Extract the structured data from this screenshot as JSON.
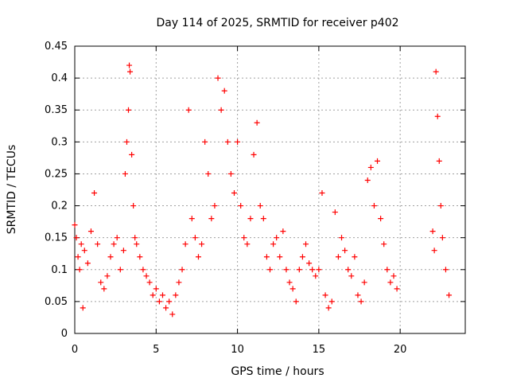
{
  "chart_data": {
    "type": "scatter",
    "title": "Day 114 of 2025, SRMTID for receiver p402",
    "xlabel": "GPS time / hours",
    "ylabel": "SRMTID / TECUs",
    "xlim": [
      0,
      24
    ],
    "ylim": [
      0,
      0.45
    ],
    "xticks": [
      0,
      5,
      10,
      15,
      20
    ],
    "yticks": [
      0,
      0.05,
      0.1,
      0.15,
      0.2,
      0.25,
      0.3,
      0.35,
      0.4,
      0.45
    ],
    "xtick_labels": [
      "0",
      "5",
      "10",
      "15",
      "20"
    ],
    "ytick_labels": [
      "0",
      "0.05",
      "0.1",
      "0.15",
      "0.2",
      "0.25",
      "0.3",
      "0.35",
      "0.4",
      "0.45"
    ],
    "grid": true,
    "marker": "+",
    "color": "#ff0000",
    "series": [
      {
        "name": "SRMTID",
        "x": [
          0.0,
          0.1,
          0.2,
          0.3,
          0.4,
          0.5,
          0.6,
          0.8,
          1.0,
          1.2,
          1.4,
          1.6,
          1.8,
          2.0,
          2.2,
          2.4,
          2.6,
          2.8,
          3.0,
          3.1,
          3.2,
          3.3,
          3.35,
          3.4,
          3.5,
          3.6,
          3.7,
          3.8,
          4.0,
          4.2,
          4.4,
          4.6,
          4.8,
          5.0,
          5.2,
          5.4,
          5.6,
          5.8,
          6.0,
          6.2,
          6.4,
          6.6,
          6.8,
          7.0,
          7.2,
          7.4,
          7.6,
          7.8,
          8.0,
          8.2,
          8.4,
          8.6,
          8.8,
          9.0,
          9.2,
          9.4,
          9.6,
          9.8,
          10.0,
          10.2,
          10.4,
          10.6,
          10.8,
          11.0,
          11.2,
          11.4,
          11.6,
          11.8,
          12.0,
          12.2,
          12.4,
          12.6,
          12.8,
          13.0,
          13.2,
          13.4,
          13.6,
          13.8,
          14.0,
          14.2,
          14.4,
          14.6,
          14.8,
          15.0,
          15.2,
          15.4,
          15.6,
          15.8,
          16.0,
          16.2,
          16.4,
          16.6,
          16.8,
          17.0,
          17.2,
          17.4,
          17.6,
          17.8,
          18.0,
          18.2,
          18.4,
          18.6,
          18.8,
          19.0,
          19.2,
          19.4,
          19.6,
          19.8,
          22.0,
          22.1,
          22.2,
          22.3,
          22.4,
          22.5,
          22.6,
          22.8,
          23.0
        ],
        "y": [
          0.17,
          0.15,
          0.12,
          0.1,
          0.14,
          0.04,
          0.13,
          0.11,
          0.16,
          0.22,
          0.14,
          0.08,
          0.07,
          0.09,
          0.12,
          0.14,
          0.15,
          0.1,
          0.13,
          0.25,
          0.3,
          0.35,
          0.42,
          0.41,
          0.28,
          0.2,
          0.15,
          0.14,
          0.12,
          0.1,
          0.09,
          0.08,
          0.06,
          0.07,
          0.05,
          0.06,
          0.04,
          0.05,
          0.03,
          0.06,
          0.08,
          0.1,
          0.14,
          0.35,
          0.18,
          0.15,
          0.12,
          0.14,
          0.3,
          0.25,
          0.18,
          0.2,
          0.4,
          0.35,
          0.38,
          0.3,
          0.25,
          0.22,
          0.3,
          0.2,
          0.15,
          0.14,
          0.18,
          0.28,
          0.33,
          0.2,
          0.18,
          0.12,
          0.1,
          0.14,
          0.15,
          0.12,
          0.16,
          0.1,
          0.08,
          0.07,
          0.05,
          0.1,
          0.12,
          0.14,
          0.11,
          0.1,
          0.09,
          0.1,
          0.22,
          0.06,
          0.04,
          0.05,
          0.19,
          0.12,
          0.15,
          0.13,
          0.1,
          0.09,
          0.12,
          0.06,
          0.05,
          0.08,
          0.24,
          0.26,
          0.2,
          0.27,
          0.18,
          0.14,
          0.1,
          0.08,
          0.09,
          0.07,
          0.16,
          0.13,
          0.41,
          0.34,
          0.27,
          0.2,
          0.15,
          0.1,
          0.06
        ]
      }
    ]
  }
}
